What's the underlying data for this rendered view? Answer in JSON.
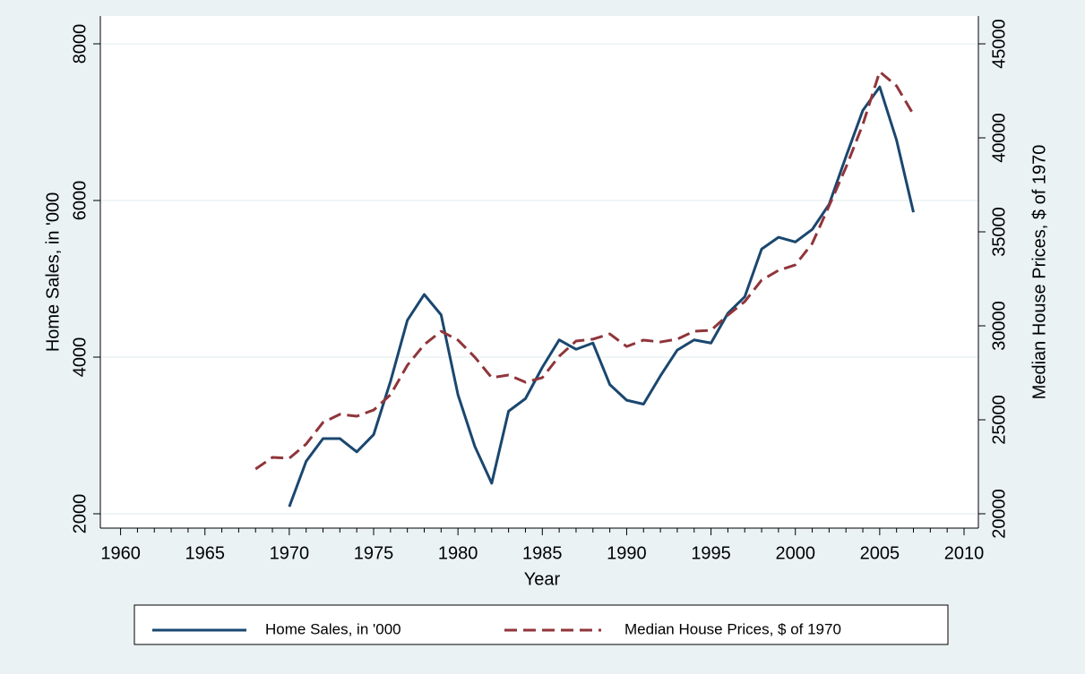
{
  "chart_data": {
    "type": "line",
    "xlabel": "Year",
    "ylabel": "Home Sales, in '000",
    "y2label": "Median House Prices, $ of 1970",
    "x": [
      1968,
      1969,
      1970,
      1971,
      1972,
      1973,
      1974,
      1975,
      1976,
      1977,
      1978,
      1979,
      1980,
      1981,
      1982,
      1983,
      1984,
      1985,
      1986,
      1987,
      1988,
      1989,
      1990,
      1991,
      1992,
      1993,
      1994,
      1995,
      1996,
      1997,
      1998,
      1999,
      2000,
      2001,
      2002,
      2003,
      2004,
      2005,
      2006,
      2007
    ],
    "series": [
      {
        "name": "Home Sales, in '000",
        "color": "#1a476f",
        "dash": "solid",
        "axis": "y",
        "values": [
          null,
          null,
          2090,
          2670,
          2960,
          2960,
          2790,
          3010,
          3690,
          4470,
          4800,
          4540,
          3520,
          2860,
          2390,
          3310,
          3470,
          3870,
          4220,
          4100,
          4180,
          3650,
          3450,
          3400,
          3760,
          4090,
          4220,
          4180,
          4560,
          4770,
          5380,
          5530,
          5470,
          5630,
          5950,
          6560,
          7150,
          7450,
          6770,
          5850
        ]
      },
      {
        "name": "Median House Prices, $ of 1970",
        "color": "#90353b",
        "dash": "dashed",
        "axis": "y2",
        "values": [
          22380,
          23000,
          22950,
          23710,
          24860,
          25290,
          25190,
          25520,
          26330,
          27900,
          29000,
          29710,
          29240,
          28330,
          27240,
          27380,
          27000,
          27240,
          28380,
          29190,
          29290,
          29570,
          28900,
          29240,
          29140,
          29290,
          29710,
          29760,
          30570,
          31290,
          32430,
          32950,
          33240,
          34380,
          36380,
          38430,
          40710,
          43520,
          42760,
          41240
        ]
      }
    ],
    "xlim": [
      1958.8,
      2010.85
    ],
    "xticks": [
      1960,
      1965,
      1970,
      1975,
      1980,
      1985,
      1990,
      1995,
      2000,
      2005,
      2010
    ],
    "xminorticks": [
      1961,
      1962,
      1963,
      1964,
      1966,
      1967,
      1968,
      1969,
      1971,
      1972,
      1973,
      1974,
      1976,
      1977,
      1978,
      1979,
      1981,
      1982,
      1983,
      1984,
      1986,
      1987,
      1988,
      1989,
      1991,
      1992,
      1993,
      1994,
      1996,
      1997,
      1998,
      1999,
      2001,
      2002,
      2003,
      2004,
      2006,
      2007,
      2008,
      2009
    ],
    "ylim": [
      1817,
      8354
    ],
    "yticks": [
      2000,
      4000,
      6000,
      8000
    ],
    "y2lim": [
      19238,
      46476
    ],
    "y2ticks": [
      20000,
      25000,
      30000,
      35000,
      40000,
      45000
    ],
    "grid": true,
    "legend": "bottom"
  }
}
